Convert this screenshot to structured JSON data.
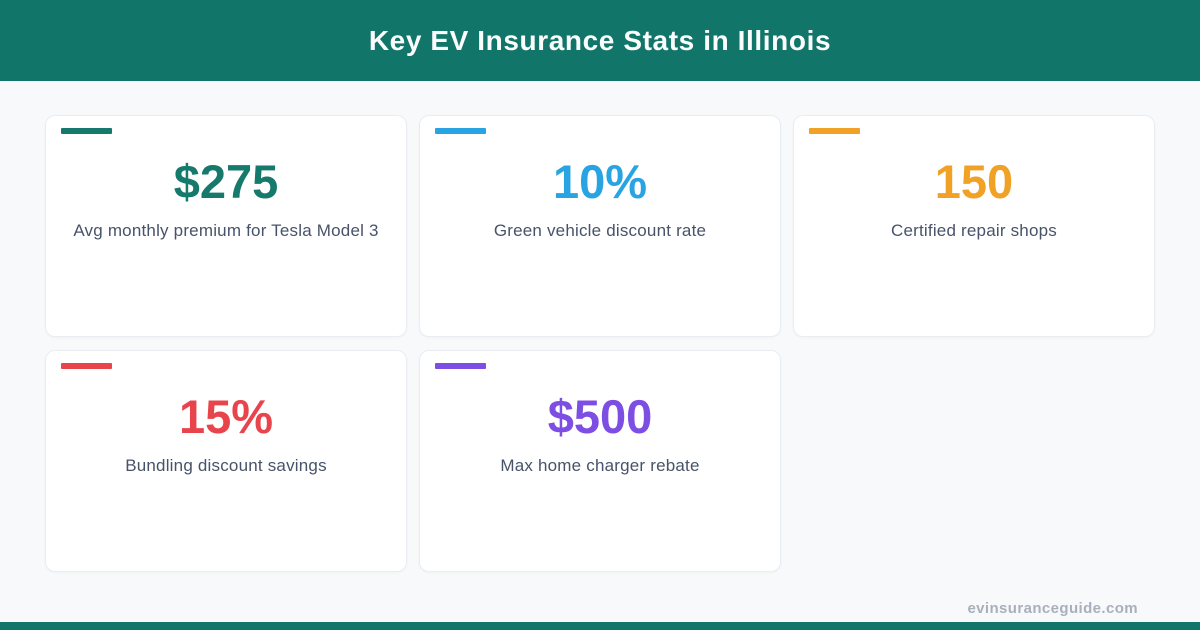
{
  "header": {
    "title": "Key EV Insurance Stats in Illinois",
    "bg_color": "#11756a",
    "text_color": "#fbfdfd"
  },
  "page": {
    "bg_color": "#f7f9fa",
    "card_bg": "#ffffff",
    "card_border": "#e9edf2",
    "label_color": "#475369"
  },
  "footer": {
    "site": "evinsuranceguide.com",
    "text_color": "#a9b0bd",
    "bar_color": "#11756a"
  },
  "chart_data": {
    "type": "table",
    "title": "Key EV Insurance Stats in Illinois",
    "stats": [
      {
        "value": "$275",
        "label": "Avg monthly premium for Tesla Model 3",
        "color": "#15796c"
      },
      {
        "value": "10%",
        "label": "Green vehicle discount rate",
        "color": "#29a4e2"
      },
      {
        "value": "150",
        "label": "Certified repair shops",
        "color": "#f1a226"
      },
      {
        "value": "15%",
        "label": "Bundling discount savings",
        "color": "#e8444c"
      },
      {
        "value": "$500",
        "label": "Max home charger rebate",
        "color": "#7d4ee4"
      }
    ]
  }
}
